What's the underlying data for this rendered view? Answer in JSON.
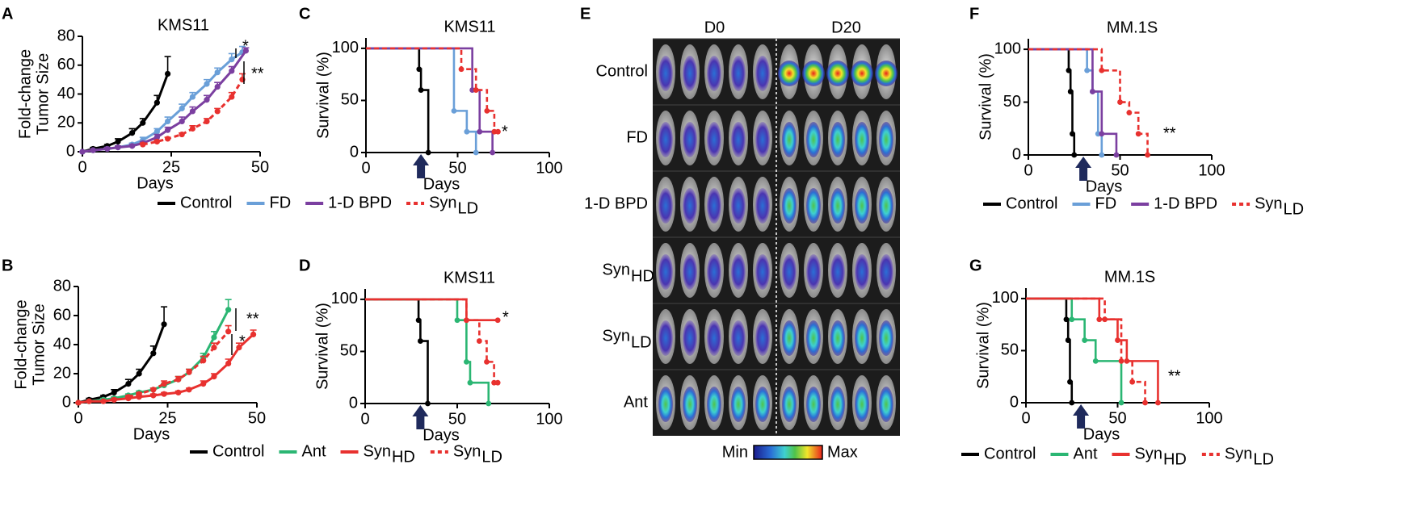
{
  "chart_data": [
    {
      "panel_label": "A",
      "type": "line",
      "title": "KMS11",
      "xlabel": "Days",
      "ylabel": [
        "Fold-change",
        "Tumor Size"
      ],
      "xlim": [
        0,
        50
      ],
      "xticks": [
        0,
        25,
        50
      ],
      "ylim": [
        0,
        80
      ],
      "yticks": [
        0,
        20,
        40,
        60,
        80
      ],
      "legend": "below",
      "annotations": [
        "*",
        "**"
      ],
      "series": [
        {
          "name": "Control",
          "color": "#000000",
          "dash": false,
          "x": [
            0,
            3,
            7,
            10,
            14,
            17,
            21,
            24
          ],
          "values": [
            0,
            2,
            4,
            7,
            13,
            20,
            34,
            54
          ],
          "errors": [
            0,
            1,
            1,
            2,
            3,
            3,
            5,
            12
          ]
        },
        {
          "name": "FD",
          "color": "#6a9fd8",
          "dash": false,
          "x": [
            0,
            3,
            7,
            10,
            14,
            17,
            21,
            24,
            28,
            31,
            35,
            38,
            42,
            45
          ],
          "values": [
            0,
            1,
            2,
            3,
            5,
            8,
            14,
            21,
            30,
            38,
            47,
            55,
            64,
            69
          ],
          "errors": [
            0,
            0,
            1,
            1,
            1,
            2,
            2,
            3,
            3,
            3,
            3,
            3,
            4,
            4
          ]
        },
        {
          "name": "1-D BPD",
          "color": "#7b3fa0",
          "dash": false,
          "x": [
            0,
            3,
            7,
            10,
            14,
            17,
            21,
            24,
            28,
            31,
            35,
            38,
            42,
            46
          ],
          "values": [
            0,
            1,
            2,
            3,
            4,
            6,
            10,
            15,
            21,
            28,
            36,
            45,
            56,
            70
          ],
          "errors": [
            0,
            0,
            1,
            1,
            1,
            1,
            2,
            2,
            3,
            3,
            3,
            3,
            3,
            2
          ]
        },
        {
          "name": "Syn",
          "subscript": "LD",
          "color": "#e8312f",
          "dash": true,
          "x": [
            17,
            21,
            24,
            28,
            31,
            35,
            38,
            42,
            45
          ],
          "values": [
            5,
            7,
            9,
            12,
            16,
            21,
            28,
            38,
            50
          ],
          "errors": [
            1,
            1,
            1,
            1,
            2,
            2,
            2,
            3,
            4
          ]
        }
      ]
    },
    {
      "panel_label": "B",
      "type": "line",
      "xlabel": "Days",
      "ylabel": [
        "Fold-change",
        "Tumor Size"
      ],
      "xlim": [
        0,
        50
      ],
      "xticks": [
        0,
        25,
        50
      ],
      "ylim": [
        0,
        80
      ],
      "yticks": [
        0,
        20,
        40,
        60,
        80
      ],
      "legend": "below",
      "annotations": [
        "**",
        "*"
      ],
      "series": [
        {
          "name": "Control",
          "color": "#000000",
          "dash": false,
          "x": [
            0,
            3,
            7,
            10,
            14,
            17,
            21,
            24
          ],
          "values": [
            0,
            2,
            4,
            7,
            13,
            20,
            34,
            54
          ],
          "errors": [
            0,
            1,
            1,
            2,
            3,
            3,
            5,
            12
          ]
        },
        {
          "name": "Ant",
          "color": "#2bb673",
          "dash": false,
          "x": [
            0,
            3,
            7,
            10,
            14,
            17,
            21,
            24,
            28,
            31,
            35,
            38,
            42
          ],
          "values": [
            0,
            1,
            2,
            3,
            5,
            7,
            9,
            12,
            16,
            21,
            31,
            45,
            64
          ],
          "errors": [
            0,
            0,
            1,
            1,
            1,
            1,
            1,
            1,
            2,
            2,
            3,
            4,
            7
          ]
        },
        {
          "name": "Syn",
          "subscript": "HD",
          "color": "#e8312f",
          "dash": false,
          "x": [
            0,
            3,
            7,
            10,
            14,
            17,
            21,
            24,
            28,
            31,
            35,
            38,
            42,
            45,
            49
          ],
          "values": [
            0,
            1,
            1,
            2,
            3,
            4,
            5,
            6,
            7,
            9,
            13,
            18,
            27,
            38,
            47
          ],
          "errors": [
            0,
            0,
            0,
            1,
            1,
            1,
            1,
            1,
            1,
            1,
            2,
            2,
            3,
            3,
            3
          ]
        },
        {
          "name": "Syn",
          "subscript": "LD",
          "color": "#e8312f",
          "dash": true,
          "x": [
            14,
            17,
            21,
            24,
            28,
            31,
            35,
            38,
            42
          ],
          "values": [
            4,
            6,
            9,
            13,
            16,
            21,
            29,
            38,
            49
          ],
          "errors": [
            1,
            1,
            1,
            2,
            2,
            2,
            3,
            3,
            4
          ]
        }
      ]
    },
    {
      "panel_label": "C",
      "type": "step",
      "title": "KMS11",
      "xlabel": "Days",
      "ylabel": [
        "Survival (%)"
      ],
      "xlim": [
        0,
        100
      ],
      "xticks": [
        0,
        50,
        100
      ],
      "ylim": [
        0,
        110
      ],
      "yticks": [
        0,
        50,
        100
      ],
      "legend": "none",
      "annotations": [
        "*"
      ],
      "series": [
        {
          "name": "Control",
          "color": "#000000",
          "dash": false,
          "x": [
            0,
            29,
            30,
            34
          ],
          "values": [
            100,
            80,
            60,
            0
          ]
        },
        {
          "name": "FD",
          "color": "#6a9fd8",
          "dash": false,
          "x": [
            0,
            48,
            55,
            60
          ],
          "values": [
            100,
            40,
            20,
            0
          ]
        },
        {
          "name": "1-D BPD",
          "color": "#7b3fa0",
          "dash": false,
          "x": [
            0,
            58,
            62,
            69
          ],
          "values": [
            100,
            60,
            20,
            0
          ]
        },
        {
          "name": "Syn",
          "subscript": "LD",
          "color": "#e8312f",
          "dash": true,
          "x": [
            0,
            52,
            60,
            66,
            70,
            72
          ],
          "values": [
            100,
            80,
            60,
            40,
            20,
            20
          ]
        }
      ]
    },
    {
      "panel_label": "D",
      "type": "step",
      "title": "KMS11",
      "xlabel": "Days",
      "ylabel": [
        "Survival (%)"
      ],
      "xlim": [
        0,
        100
      ],
      "xticks": [
        0,
        50,
        100
      ],
      "ylim": [
        0,
        110
      ],
      "yticks": [
        0,
        50,
        100
      ],
      "legend": "none",
      "annotations": [
        "*"
      ],
      "series": [
        {
          "name": "Control",
          "color": "#000000",
          "dash": false,
          "x": [
            0,
            29,
            30,
            34
          ],
          "values": [
            100,
            80,
            60,
            0
          ]
        },
        {
          "name": "Ant",
          "color": "#2bb673",
          "dash": false,
          "x": [
            0,
            50,
            55,
            57,
            67
          ],
          "values": [
            100,
            80,
            40,
            20,
            0
          ]
        },
        {
          "name": "Syn",
          "subscript": "HD",
          "color": "#e8312f",
          "dash": false,
          "x": [
            0,
            55,
            72
          ],
          "values": [
            100,
            80,
            80
          ]
        },
        {
          "name": "Syn",
          "subscript": "LD",
          "color": "#e8312f",
          "dash": true,
          "x": [
            0,
            55,
            62,
            66,
            70,
            72
          ],
          "values": [
            100,
            80,
            60,
            40,
            20,
            20
          ]
        }
      ]
    },
    {
      "panel_label": "F",
      "type": "step",
      "title": "MM.1S",
      "xlabel": "Days",
      "ylabel": [
        "Survival (%)"
      ],
      "xlim": [
        0,
        100
      ],
      "xticks": [
        0,
        50,
        100
      ],
      "ylim": [
        0,
        110
      ],
      "yticks": [
        0,
        50,
        100
      ],
      "legend": "below",
      "annotations": [
        "**"
      ],
      "series": [
        {
          "name": "Control",
          "color": "#000000",
          "dash": false,
          "x": [
            0,
            22,
            23,
            24,
            25
          ],
          "values": [
            100,
            80,
            60,
            20,
            0
          ]
        },
        {
          "name": "FD",
          "color": "#6a9fd8",
          "dash": false,
          "x": [
            0,
            32,
            35,
            38,
            40
          ],
          "values": [
            100,
            80,
            60,
            20,
            0
          ]
        },
        {
          "name": "1-D BPD",
          "color": "#7b3fa0",
          "dash": false,
          "x": [
            0,
            35,
            40,
            48
          ],
          "values": [
            100,
            60,
            20,
            0
          ]
        },
        {
          "name": "Syn",
          "subscript": "LD",
          "color": "#e8312f",
          "dash": true,
          "x": [
            0,
            40,
            50,
            55,
            60,
            65
          ],
          "values": [
            100,
            80,
            50,
            40,
            20,
            0
          ]
        }
      ]
    },
    {
      "panel_label": "G",
      "type": "step",
      "title": "MM.1S",
      "xlabel": "Days",
      "ylabel": [
        "Survival (%)"
      ],
      "xlim": [
        0,
        100
      ],
      "xticks": [
        0,
        50,
        100
      ],
      "ylim": [
        0,
        110
      ],
      "yticks": [
        0,
        50,
        100
      ],
      "legend": "below",
      "annotations": [
        "**"
      ],
      "series": [
        {
          "name": "Control",
          "color": "#000000",
          "dash": false,
          "x": [
            0,
            22,
            23,
            24,
            25
          ],
          "values": [
            100,
            80,
            60,
            20,
            0
          ]
        },
        {
          "name": "Ant",
          "color": "#2bb673",
          "dash": false,
          "x": [
            0,
            25,
            32,
            38,
            52
          ],
          "values": [
            100,
            80,
            60,
            40,
            0
          ]
        },
        {
          "name": "Syn",
          "subscript": "HD",
          "color": "#e8312f",
          "dash": false,
          "x": [
            0,
            40,
            50,
            55,
            72
          ],
          "values": [
            100,
            80,
            60,
            40,
            0
          ]
        },
        {
          "name": "Syn",
          "subscript": "LD",
          "color": "#e8312f",
          "dash": true,
          "x": [
            0,
            43,
            52,
            58,
            65
          ],
          "values": [
            100,
            80,
            40,
            20,
            0
          ]
        }
      ]
    }
  ],
  "image_panel": {
    "panel_label": "E",
    "columns": [
      "D0",
      "D20"
    ],
    "rows": [
      {
        "name": "Control"
      },
      {
        "name": "FD"
      },
      {
        "name": "1-D BPD"
      },
      {
        "name": "Syn",
        "subscript": "HD"
      },
      {
        "name": "Syn",
        "subscript": "LD"
      },
      {
        "name": "Ant"
      }
    ],
    "scale_min": "Min",
    "scale_max": "Max"
  }
}
